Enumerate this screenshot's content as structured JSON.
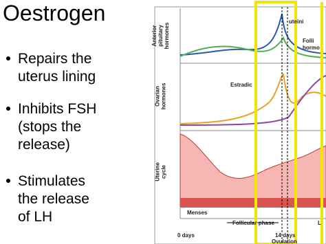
{
  "slide": {
    "title": "Oestrogen",
    "bullets": [
      [
        "Repairs the",
        "uterus lining"
      ],
      [
        "Inhibits FSH",
        "(stops the",
        "release)"
      ],
      [
        "Stimulates",
        "the release",
        "of LH"
      ]
    ]
  },
  "diagram": {
    "panels": [
      [
        "Anterior",
        "pituitary",
        "hormones"
      ],
      [
        "Ovarian",
        "hormones"
      ],
      [
        "Uterine",
        "cycle"
      ]
    ],
    "labels": {
      "lh": "uteini",
      "fsh": [
        "Folli",
        "hormo"
      ],
      "estradiol": "Estradic",
      "menses": "Menses",
      "phase": "Follicular phase",
      "day0": "0 days",
      "day14": "14 days",
      "ovulation": "Ovulation",
      "luteal": "L"
    }
  }
}
